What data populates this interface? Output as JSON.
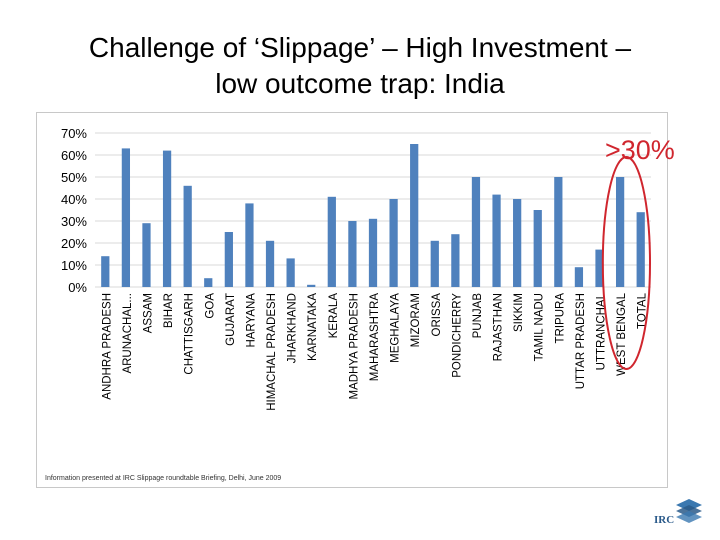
{
  "slide": {
    "title_line1": "Challenge of ‘Slippage’ – High Investment –",
    "title_line2": "low outcome trap: India"
  },
  "callout": {
    "text": ">30%",
    "color": "#d0262e"
  },
  "source_note": "Information presented at IRC Slippage roundtable Briefing, Delhi, June 2009",
  "logo": {
    "text": "IRC",
    "icon": "irc-logo-icon"
  },
  "colors": {
    "bar": "#4f81bd",
    "grid": "#d9d9d9",
    "callout": "#d0262e"
  },
  "chart_data": {
    "type": "bar",
    "title": "",
    "xlabel": "",
    "ylabel": "",
    "ylim": [
      0,
      70
    ],
    "yticks": [
      0,
      10,
      20,
      30,
      40,
      50,
      60,
      70
    ],
    "ytick_labels": [
      "0%",
      "10%",
      "20%",
      "30%",
      "40%",
      "50%",
      "60%",
      "70%"
    ],
    "categories": [
      "ANDHRA PRADESH",
      "ARUNACHAL...",
      "ASSAM",
      "BIHAR",
      "CHATTISGARH",
      "GOA",
      "GUJARAT",
      "HARYANA",
      "HIMACHAL PRADESH",
      "JHARKHAND",
      "KARNATAKA",
      "KERALA",
      "MADHYA PRADESH",
      "MAHARASHTRA",
      "MEGHALAYA",
      "MIZORAM",
      "ORISSA",
      "PONDICHERRY",
      "PUNJAB",
      "RAJASTHAN",
      "SIKKIM",
      "TAMIL NADU",
      "TRIPURA",
      "UTTAR PRADESH",
      "UTTRANCHAL",
      "WEST BENGAL",
      "TOTAL"
    ],
    "values": [
      14,
      63,
      29,
      62,
      46,
      4,
      25,
      38,
      21,
      13,
      1,
      41,
      30,
      31,
      40,
      65,
      21,
      24,
      50,
      42,
      40,
      35,
      50,
      9,
      17,
      50,
      34
    ],
    "highlight": {
      "categories": [
        "WEST BENGAL",
        "TOTAL"
      ],
      "shape": "ellipse"
    }
  }
}
